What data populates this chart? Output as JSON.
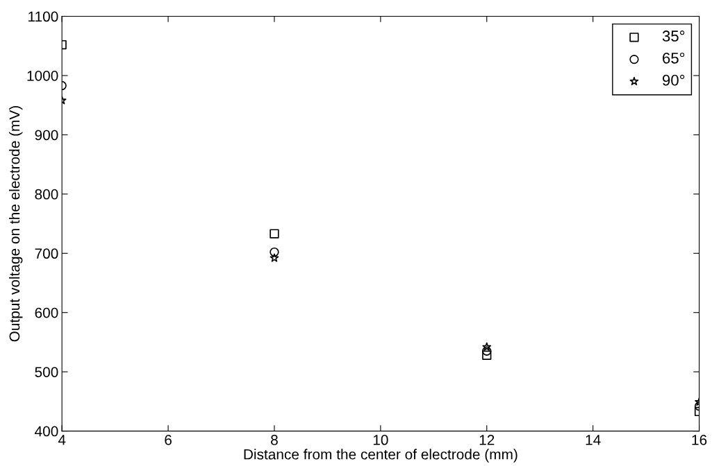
{
  "chart_data": {
    "type": "scatter",
    "xlabel": "Distance from the center of electrode (mm)",
    "ylabel": "Output voltage on the electrode (mV)",
    "x": [
      4,
      8,
      12,
      16
    ],
    "series": [
      {
        "name": "35°",
        "color": "#000000",
        "marker": "square",
        "values": [
          1052,
          733,
          528,
          433
        ]
      },
      {
        "name": "65°",
        "color": "#000000",
        "marker": "circle",
        "values": [
          983,
          702,
          535,
          442
        ]
      },
      {
        "name": "90°",
        "color": "#000000",
        "marker": "star",
        "values": [
          958,
          692,
          542,
          449
        ]
      }
    ],
    "xlim": [
      4,
      16
    ],
    "xticks": [
      4,
      6,
      8,
      10,
      12,
      14,
      16
    ],
    "ylim": [
      400,
      1100
    ],
    "yticks": [
      400,
      500,
      600,
      700,
      800,
      900,
      1000,
      1100
    ],
    "grid": false,
    "legend": "top right"
  }
}
